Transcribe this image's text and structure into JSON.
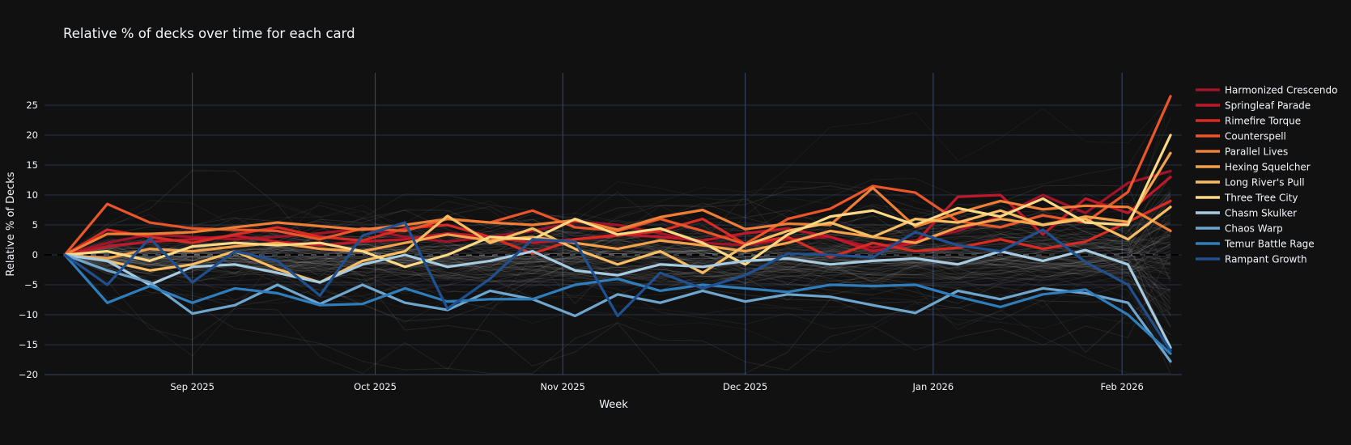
{
  "title": "Relative  % of decks over time for each card",
  "colors": {
    "background": "#111111",
    "text": "#f2f5fa",
    "grid_horizontal": "#252e42",
    "grid_vertical": "#38436100",
    "grid_month": "#3a4a6b",
    "zero_dash": "#000000",
    "background_lines": "#d0d0d0"
  },
  "chart_data": {
    "type": "line",
    "title": "Relative  % of decks over time for each card",
    "xlabel": "Week",
    "ylabel": "Relative % of Decks",
    "ylim": [
      -20.5,
      30.5
    ],
    "y_ticks": [
      -20,
      -15,
      -10,
      -5,
      0,
      5,
      10,
      15,
      20,
      25
    ],
    "x_is_weekly_index": true,
    "n_weeks": 27,
    "x_ticks": [
      {
        "label": "Sep 2025",
        "pos": 3.0
      },
      {
        "label": "Oct 2025",
        "pos": 7.3
      },
      {
        "label": "Nov 2025",
        "pos": 11.71
      },
      {
        "label": "Dec 2025",
        "pos": 16.0
      },
      {
        "label": "Jan 2026",
        "pos": 20.42
      },
      {
        "label": "Feb 2026",
        "pos": 24.86
      }
    ],
    "zero_line": {
      "value": 0,
      "style": "dashed"
    },
    "grid": true,
    "legend_position": "right",
    "series": [
      {
        "name": "Harmonized Crescendo",
        "slug": "harmonized-crescendo",
        "color": "#a01328",
        "values": [
          0,
          2,
          3.4,
          3,
          2.6,
          3,
          3.6,
          4.4,
          3,
          2.2,
          3,
          4,
          5.5,
          5,
          3.6,
          2,
          1.6,
          2.6,
          3,
          1.2,
          2.4,
          4,
          6.5,
          10,
          7,
          12,
          14
        ]
      },
      {
        "name": "Springleaf Parade",
        "slug": "springleaf-parade",
        "color": "#bf182b",
        "values": [
          0,
          1.4,
          2.2,
          2.6,
          3.2,
          2.2,
          1.6,
          2.2,
          2.6,
          3.6,
          3,
          2,
          2.6,
          3.4,
          3,
          2.4,
          3.6,
          4.4,
          3,
          0.6,
          2,
          9.7,
          10,
          3.4,
          9.4,
          7,
          13
        ]
      },
      {
        "name": "Rimefire Torque",
        "slug": "rimefire-torque",
        "color": "#d92b23",
        "values": [
          0,
          4.2,
          3,
          2,
          3.4,
          4.6,
          3,
          2.4,
          4.4,
          5,
          3,
          0.2,
          2.6,
          3.2,
          4,
          6,
          1.8,
          3,
          -0.4,
          2,
          0.6,
          1.2,
          2.6,
          1,
          2.2,
          5.5,
          9
        ]
      },
      {
        "name": "Counterspell",
        "slug": "counterspell",
        "color": "#ea5629",
        "values": [
          0,
          8.5,
          5.4,
          4.4,
          4.2,
          4,
          2.6,
          4.4,
          4,
          6,
          5.4,
          7.4,
          4.6,
          4,
          6,
          4,
          1.8,
          6,
          7.7,
          11.5,
          10.4,
          5.6,
          4.6,
          6.6,
          5.4,
          10.5,
          26.5
        ]
      },
      {
        "name": "Parallel Lives",
        "slug": "parallel-lives",
        "color": "#ef7f35",
        "values": [
          0,
          3.5,
          3.5,
          3.8,
          4.6,
          5.4,
          4.8,
          4.2,
          5,
          6,
          5.4,
          5,
          5.8,
          4.2,
          6.3,
          7.5,
          4.3,
          5.2,
          5,
          11.2,
          4.7,
          7,
          9,
          7.6,
          8.2,
          8,
          4
        ]
      },
      {
        "name": "Hexing Squelcher",
        "slug": "hexing-squelcher",
        "color": "#f5a14b",
        "values": [
          0,
          -0.6,
          1,
          0.6,
          1.4,
          2,
          1,
          0.6,
          2,
          3.4,
          2.4,
          3,
          2,
          1,
          2.4,
          1.6,
          0.6,
          2,
          4,
          3,
          2,
          4.6,
          6,
          5,
          6.4,
          5.5,
          17
        ]
      },
      {
        "name": "Long River's Pull",
        "slug": "long-rivers-pull",
        "color": "#f8bd62",
        "values": [
          0,
          -1,
          -2.6,
          -1.6,
          0.6,
          -2.4,
          -4.6,
          -1,
          0.6,
          6.5,
          2,
          4.4,
          1,
          -1.6,
          0.6,
          -3,
          1.6,
          4,
          5.4,
          3,
          6,
          5.4,
          7.4,
          5,
          6,
          2.6,
          8
        ]
      },
      {
        "name": "Three Tree City",
        "slug": "three-tree-city",
        "color": "#fbd985",
        "values": [
          0,
          0.6,
          -1,
          1.4,
          2,
          1.6,
          2,
          0.6,
          -2,
          0,
          3,
          2.6,
          6,
          3.4,
          4.4,
          2,
          -1.6,
          3.4,
          6.4,
          7.4,
          5,
          7.8,
          6.4,
          9.4,
          5.4,
          5,
          20
        ]
      },
      {
        "name": "Chasm Skulker",
        "slug": "chasm-skulker",
        "color": "#a7cbe0",
        "values": [
          0,
          -1,
          -5,
          -2,
          -1.6,
          -3,
          -4.6,
          -1.6,
          0,
          -2,
          -1,
          0.6,
          -2.6,
          -3.4,
          -1.6,
          -2,
          -1,
          -0.6,
          -1.6,
          -1,
          -0.6,
          -1.6,
          0.6,
          -1,
          0.8,
          -1.6,
          -15.5
        ]
      },
      {
        "name": "Chaos Warp",
        "slug": "chaos-warp",
        "color": "#6ea6cd",
        "values": [
          0,
          -2.6,
          -4.6,
          -9.8,
          -8.4,
          -5,
          -8.2,
          -5,
          -8,
          -9.2,
          -6,
          -7.4,
          -10.2,
          -6.6,
          -8,
          -6,
          -7.8,
          -6.6,
          -7,
          -8.4,
          -9.7,
          -6,
          -7.4,
          -5.6,
          -6.4,
          -8,
          -17.8
        ]
      },
      {
        "name": "Temur Battle Rage",
        "slug": "temur-battle-rage",
        "color": "#2f7dbb",
        "values": [
          0,
          -8,
          -5.2,
          -8,
          -5.6,
          -6.4,
          -8.4,
          -8.2,
          -5.6,
          -7.8,
          -7.4,
          -7.4,
          -5,
          -4,
          -6,
          -5,
          -5.6,
          -6.2,
          -5,
          -5.2,
          -5,
          -7,
          -8.7,
          -6.6,
          -5.8,
          -10,
          -16.5
        ]
      },
      {
        "name": "Rampant Growth",
        "slug": "rampant-growth",
        "color": "#20508f",
        "values": [
          0,
          -5,
          2.8,
          -4.6,
          0.6,
          -1,
          -6.8,
          3.2,
          5.4,
          -9,
          -4,
          2.6,
          2.2,
          -10.2,
          -3,
          -5.6,
          -3.4,
          0.2,
          0,
          -0.4,
          3.8,
          1.6,
          0.6,
          4.2,
          -1.2,
          -5,
          -16
        ]
      }
    ],
    "background_lines": {
      "description": "many unlabeled faint gray context lines, one per other card, all starting at 0 and fanning out at the final week",
      "count": 115,
      "seed": 13,
      "opacity_min": 0.05,
      "opacity_max": 0.13
    }
  }
}
